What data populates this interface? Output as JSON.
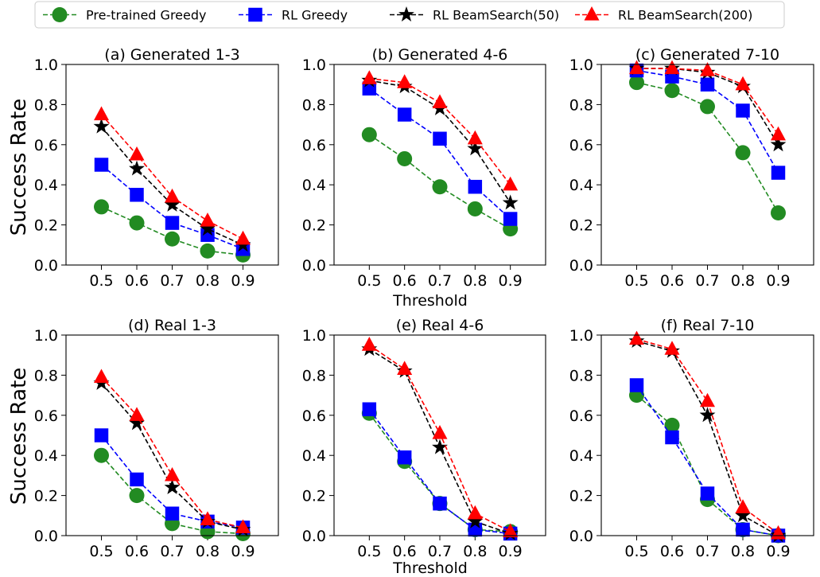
{
  "legend": {
    "placement": "top-center",
    "entries": [
      {
        "label": "Pre-trained Greedy",
        "color": "#228b22",
        "marker": "circle"
      },
      {
        "label": "RL Greedy",
        "color": "#0000ff",
        "marker": "square"
      },
      {
        "label": "RL BeamSearch(50)",
        "color": "#000000",
        "marker": "star"
      },
      {
        "label": "RL BeamSearch(200)",
        "color": "#ff0000",
        "marker": "triangle"
      }
    ]
  },
  "shared_ylabel": "Success Rate",
  "shared_xlabel": "Threshold",
  "chart_data": [
    {
      "type": "line",
      "title": "(a) Generated 1-3",
      "x": [
        0.5,
        0.6,
        0.7,
        0.8,
        0.9
      ],
      "x_tick_labels": [
        "0.5",
        "0.6",
        "0.7",
        "0.8",
        "0.9"
      ],
      "ylim": [
        0,
        1.0
      ],
      "y_tick_labels": [
        "0.0",
        "0.2",
        "0.4",
        "0.6",
        "0.8",
        "1.0"
      ],
      "grid": false,
      "series": [
        {
          "name": "Pre-trained Greedy",
          "values": [
            0.29,
            0.21,
            0.13,
            0.07,
            0.05
          ]
        },
        {
          "name": "RL Greedy",
          "values": [
            0.5,
            0.35,
            0.21,
            0.15,
            0.08
          ]
        },
        {
          "name": "RL BeamSearch(50)",
          "values": [
            0.69,
            0.48,
            0.3,
            0.18,
            0.1
          ]
        },
        {
          "name": "RL BeamSearch(200)",
          "values": [
            0.75,
            0.55,
            0.34,
            0.22,
            0.13
          ]
        }
      ]
    },
    {
      "type": "line",
      "title": "(b) Generated 4-6",
      "x": [
        0.5,
        0.6,
        0.7,
        0.8,
        0.9
      ],
      "x_tick_labels": [
        "0.5",
        "0.6",
        "0.7",
        "0.8",
        "0.9"
      ],
      "ylim": [
        0,
        1.0
      ],
      "y_tick_labels": [
        "0.0",
        "0.2",
        "0.4",
        "0.6",
        "0.8",
        "1.0"
      ],
      "grid": false,
      "series": [
        {
          "name": "Pre-trained Greedy",
          "values": [
            0.65,
            0.53,
            0.39,
            0.28,
            0.18
          ]
        },
        {
          "name": "RL Greedy",
          "values": [
            0.88,
            0.75,
            0.63,
            0.39,
            0.23
          ]
        },
        {
          "name": "RL BeamSearch(50)",
          "values": [
            0.92,
            0.89,
            0.78,
            0.58,
            0.31
          ]
        },
        {
          "name": "RL BeamSearch(200)",
          "values": [
            0.93,
            0.91,
            0.81,
            0.63,
            0.4
          ]
        }
      ]
    },
    {
      "type": "line",
      "title": "(c) Generated 7-10",
      "x": [
        0.5,
        0.6,
        0.7,
        0.8,
        0.9
      ],
      "x_tick_labels": [
        "0.5",
        "0.6",
        "0.7",
        "0.8",
        "0.9"
      ],
      "ylim": [
        0,
        1.0
      ],
      "y_tick_labels": [
        "0.0",
        "0.2",
        "0.4",
        "0.6",
        "0.8",
        "1.0"
      ],
      "grid": false,
      "series": [
        {
          "name": "Pre-trained Greedy",
          "values": [
            0.91,
            0.87,
            0.79,
            0.56,
            0.26
          ]
        },
        {
          "name": "RL Greedy",
          "values": [
            0.97,
            0.94,
            0.9,
            0.77,
            0.46
          ]
        },
        {
          "name": "RL BeamSearch(50)",
          "values": [
            0.98,
            0.98,
            0.96,
            0.89,
            0.6
          ]
        },
        {
          "name": "RL BeamSearch(200)",
          "values": [
            0.98,
            0.98,
            0.97,
            0.9,
            0.65
          ]
        }
      ]
    },
    {
      "type": "line",
      "title": "(d) Real 1-3",
      "x": [
        0.5,
        0.6,
        0.7,
        0.8,
        0.9
      ],
      "x_tick_labels": [
        "0.5",
        "0.6",
        "0.7",
        "0.8",
        "0.9"
      ],
      "ylim": [
        0,
        1.0
      ],
      "y_tick_labels": [
        "0.0",
        "0.2",
        "0.4",
        "0.6",
        "0.8",
        "1.0"
      ],
      "grid": false,
      "series": [
        {
          "name": "Pre-trained Greedy",
          "values": [
            0.4,
            0.2,
            0.06,
            0.02,
            0.01
          ]
        },
        {
          "name": "RL Greedy",
          "values": [
            0.5,
            0.28,
            0.11,
            0.07,
            0.04
          ]
        },
        {
          "name": "RL BeamSearch(50)",
          "values": [
            0.76,
            0.56,
            0.24,
            0.07,
            0.03
          ]
        },
        {
          "name": "RL BeamSearch(200)",
          "values": [
            0.79,
            0.6,
            0.3,
            0.08,
            0.04
          ]
        }
      ]
    },
    {
      "type": "line",
      "title": "(e) Real 4-6",
      "x": [
        0.5,
        0.6,
        0.7,
        0.8,
        0.9
      ],
      "x_tick_labels": [
        "0.5",
        "0.6",
        "0.7",
        "0.8",
        "0.9"
      ],
      "ylim": [
        0,
        1.0
      ],
      "y_tick_labels": [
        "0.0",
        "0.2",
        "0.4",
        "0.6",
        "0.8",
        "1.0"
      ],
      "grid": false,
      "series": [
        {
          "name": "Pre-trained Greedy",
          "values": [
            0.61,
            0.37,
            0.16,
            0.03,
            0.02
          ]
        },
        {
          "name": "RL Greedy",
          "values": [
            0.63,
            0.39,
            0.16,
            0.03,
            0.01
          ]
        },
        {
          "name": "RL BeamSearch(50)",
          "values": [
            0.93,
            0.82,
            0.44,
            0.07,
            0.01
          ]
        },
        {
          "name": "RL BeamSearch(200)",
          "values": [
            0.95,
            0.83,
            0.51,
            0.11,
            0.02
          ]
        }
      ]
    },
    {
      "type": "line",
      "title": "(f) Real 7-10",
      "x": [
        0.5,
        0.6,
        0.7,
        0.8,
        0.9
      ],
      "x_tick_labels": [
        "0.5",
        "0.6",
        "0.7",
        "0.8",
        "0.9"
      ],
      "ylim": [
        0,
        1.0
      ],
      "y_tick_labels": [
        "0.0",
        "0.2",
        "0.4",
        "0.6",
        "0.8",
        "1.0"
      ],
      "grid": false,
      "series": [
        {
          "name": "Pre-trained Greedy",
          "values": [
            0.7,
            0.55,
            0.18,
            0.03,
            0.0
          ]
        },
        {
          "name": "RL Greedy",
          "values": [
            0.75,
            0.49,
            0.21,
            0.03,
            0.0
          ]
        },
        {
          "name": "RL BeamSearch(50)",
          "values": [
            0.97,
            0.92,
            0.6,
            0.1,
            0.0
          ]
        },
        {
          "name": "RL BeamSearch(200)",
          "values": [
            0.98,
            0.93,
            0.67,
            0.14,
            0.01
          ]
        }
      ]
    }
  ]
}
